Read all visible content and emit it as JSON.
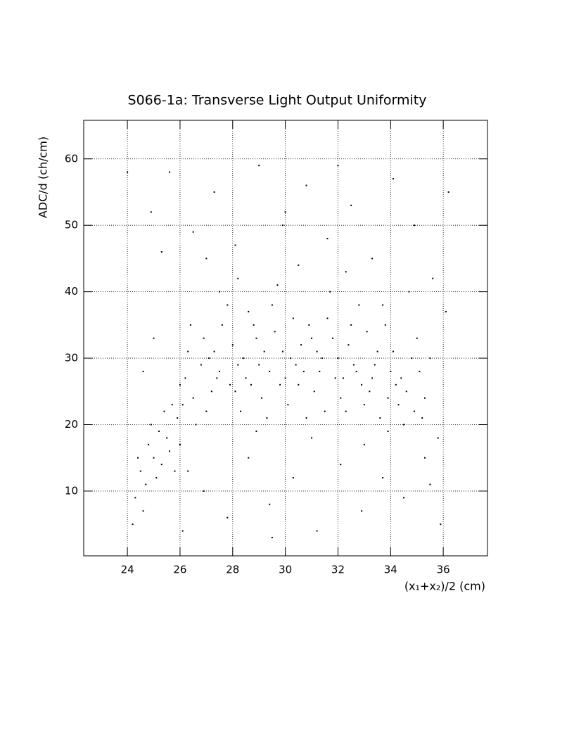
{
  "chart_data": {
    "type": "scatter",
    "title": "S066-1a: Transverse Light Output Uniformity",
    "x_label": "(x₁+x₂)/2 (cm)",
    "y_label": "ADC/d (ch/cm)",
    "color": "#000000",
    "grid": true,
    "xlim": [
      22.34,
      37.68
    ],
    "ylim": [
      0.25,
      65.8
    ],
    "xticks": [
      24,
      26,
      28,
      30,
      32,
      34,
      36
    ],
    "yticks": [
      10,
      20,
      30,
      40,
      50,
      60
    ],
    "x": [
      26.2,
      26.8,
      27.3,
      27.9,
      28.4,
      28.9,
      29.4,
      29.9,
      30.4,
      30.9,
      31.4,
      31.9,
      32.4,
      32.9,
      33.4,
      33.9,
      34.4,
      34.9,
      26.5,
      27.0,
      27.6,
      28.1,
      28.6,
      29.1,
      29.6,
      30.1,
      30.6,
      31.1,
      31.6,
      32.1,
      32.6,
      33.1,
      33.6,
      34.1,
      34.6,
      35.1,
      25.9,
      26.3,
      26.9,
      27.5,
      28.0,
      28.5,
      29.0,
      29.5,
      30.0,
      30.5,
      31.0,
      31.5,
      32.0,
      32.5,
      33.0,
      33.5,
      34.0,
      34.5,
      35.0,
      26.0,
      26.6,
      27.2,
      27.8,
      28.3,
      28.8,
      29.3,
      29.8,
      30.3,
      30.8,
      31.3,
      31.8,
      32.3,
      32.8,
      33.3,
      33.8,
      34.3,
      34.8,
      35.3,
      27.1,
      28.2,
      29.2,
      30.2,
      31.2,
      32.2,
      33.2,
      27.4,
      28.7,
      30.7,
      32.7,
      34.2,
      26.4,
      29.7,
      31.7,
      33.7,
      28.2,
      30.5,
      32.3,
      27.5,
      26.1,
      35.5,
      35.2,
      33.9,
      25.5,
      25.7,
      24.5,
      24.8,
      25.0,
      25.2,
      24.3,
      24.7,
      25.3,
      25.6,
      24.9,
      25.1,
      24.4,
      25.4,
      24.6,
      25.8,
      26.0,
      24.2,
      24.9,
      25.3,
      25.6,
      26.1,
      26.5,
      26.9,
      27.3,
      27.8,
      28.1,
      28.6,
      29.0,
      29.4,
      29.9,
      30.3,
      30.8,
      31.2,
      31.6,
      32.1,
      32.5,
      32.9,
      33.3,
      33.7,
      34.1,
      34.5,
      34.9,
      35.3,
      35.6,
      35.9,
      36.1,
      36.2,
      24.0,
      25.0,
      24.6,
      35.8,
      34.7,
      26.3,
      31.0,
      28.9,
      33.0,
      29.5,
      27.0,
      32.0,
      30.0,
      35.5
    ],
    "y": [
      27,
      29,
      31,
      26,
      30,
      33,
      28,
      31,
      29,
      35,
      30,
      27,
      32,
      26,
      29,
      24,
      27,
      22,
      24,
      22,
      35,
      25,
      37,
      24,
      34,
      23,
      32,
      25,
      36,
      24,
      29,
      34,
      21,
      31,
      25,
      28,
      21,
      31,
      33,
      28,
      32,
      27,
      29,
      38,
      27,
      26,
      33,
      22,
      30,
      35,
      23,
      31,
      28,
      20,
      33,
      26,
      20,
      25,
      38,
      22,
      35,
      21,
      26,
      36,
      21,
      28,
      33,
      22,
      38,
      27,
      35,
      23,
      30,
      24,
      30,
      29,
      31,
      30,
      31,
      27,
      25,
      27,
      26,
      28,
      28,
      26,
      35,
      41,
      40,
      38,
      42,
      44,
      43,
      40,
      23,
      30,
      21,
      19,
      18,
      23,
      13,
      17,
      15,
      19,
      9,
      11,
      14,
      16,
      20,
      12,
      15,
      22,
      7,
      13,
      17,
      5,
      52,
      46,
      58,
      4,
      49,
      10,
      55,
      6,
      47,
      15,
      59,
      8,
      50,
      12,
      56,
      4,
      48,
      14,
      53,
      7,
      45,
      12,
      57,
      9,
      50,
      15,
      42,
      5,
      37,
      55,
      58,
      33,
      28,
      18,
      40,
      13,
      18,
      19,
      17,
      3,
      45,
      59,
      52,
      11
    ]
  }
}
